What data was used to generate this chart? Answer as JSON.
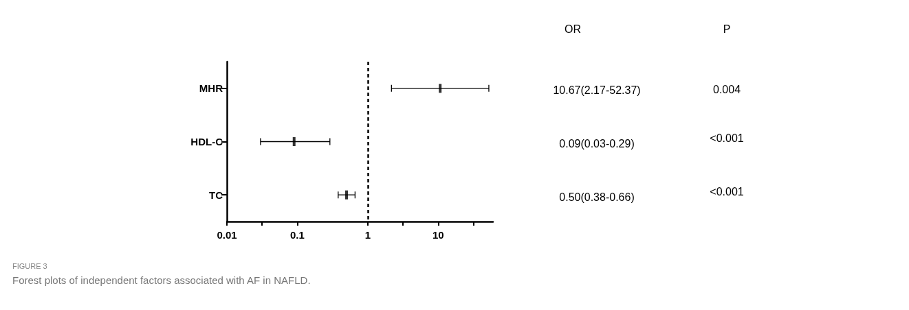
{
  "chart_data": {
    "type": "scatter",
    "orientation": "horizontal",
    "color": "#000000",
    "categories": [
      "MHR",
      "HDL-C",
      "TC"
    ],
    "values": [
      10.67,
      0.09,
      0.5
    ],
    "errors": [
      [
        2.17,
        52.37
      ],
      [
        0.03,
        0.29
      ],
      [
        0.38,
        0.66
      ]
    ],
    "log": "x",
    "xlim": [
      0.01,
      60
    ],
    "xticks": [
      0.01,
      {
        "value": 0.0316,
        "label": null
      },
      0.1,
      1,
      {
        "value": 3.16,
        "label": null
      },
      10,
      {
        "value": 31.6,
        "label": null
      }
    ],
    "ref_lines": [
      {
        "axis": "x",
        "value": 1,
        "line_style": "dashed",
        "color": "#000000"
      }
    ],
    "annotations": [
      "OR",
      "10.67(2.17-52.37)",
      "0.09(0.03-0.29)",
      "0.50(0.38-0.66)",
      "P",
      "0.004",
      "<0.001",
      "<0.001",
      "FIGURE 3",
      "Forest plots of independent factors associated with AF in NAFLD."
    ]
  }
}
